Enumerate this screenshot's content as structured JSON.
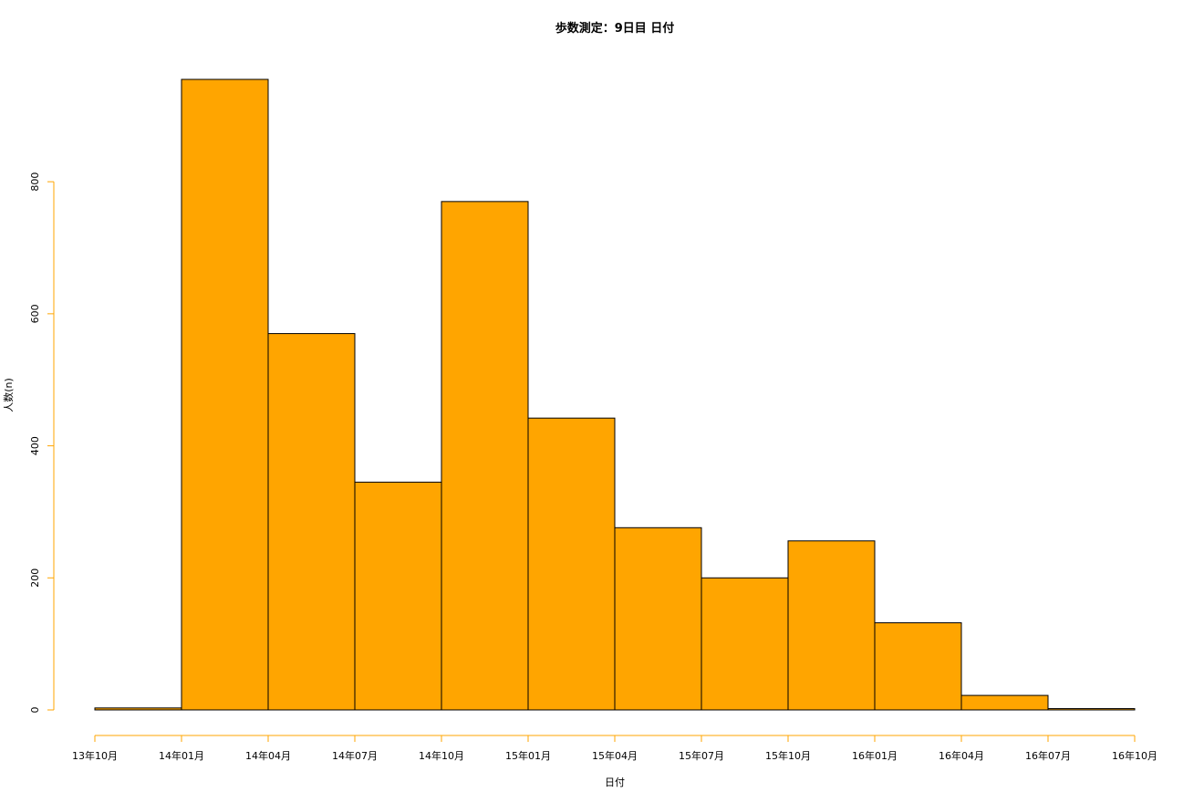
{
  "chart_data": {
    "type": "bar",
    "title": "歩数測定：9日目 日付",
    "xlabel": "日付",
    "ylabel": "人数(n)",
    "histogram": true,
    "categories": [
      "13年10月",
      "14年01月",
      "14年04月",
      "14年07月",
      "14年10月",
      "15年01月",
      "15年04月",
      "15年07月",
      "15年10月",
      "16年01月",
      "16年04月",
      "16年07月"
    ],
    "bin_edges": [
      "13年10月",
      "14年01月",
      "14年04月",
      "14年07月",
      "14年10月",
      "15年01月",
      "15年04月",
      "15年07月",
      "15年10月",
      "16年01月",
      "16年04月",
      "16年07月",
      "16年10月"
    ],
    "values": [
      3,
      955,
      570,
      345,
      770,
      442,
      276,
      200,
      256,
      132,
      22,
      2
    ],
    "ylim": [
      0,
      955
    ],
    "y_ticks": [
      0,
      200,
      400,
      600,
      800
    ],
    "grid": false,
    "colors": {
      "bar_fill": "#FFA500",
      "bar_stroke": "#000000",
      "axis": "#FFA500"
    }
  }
}
